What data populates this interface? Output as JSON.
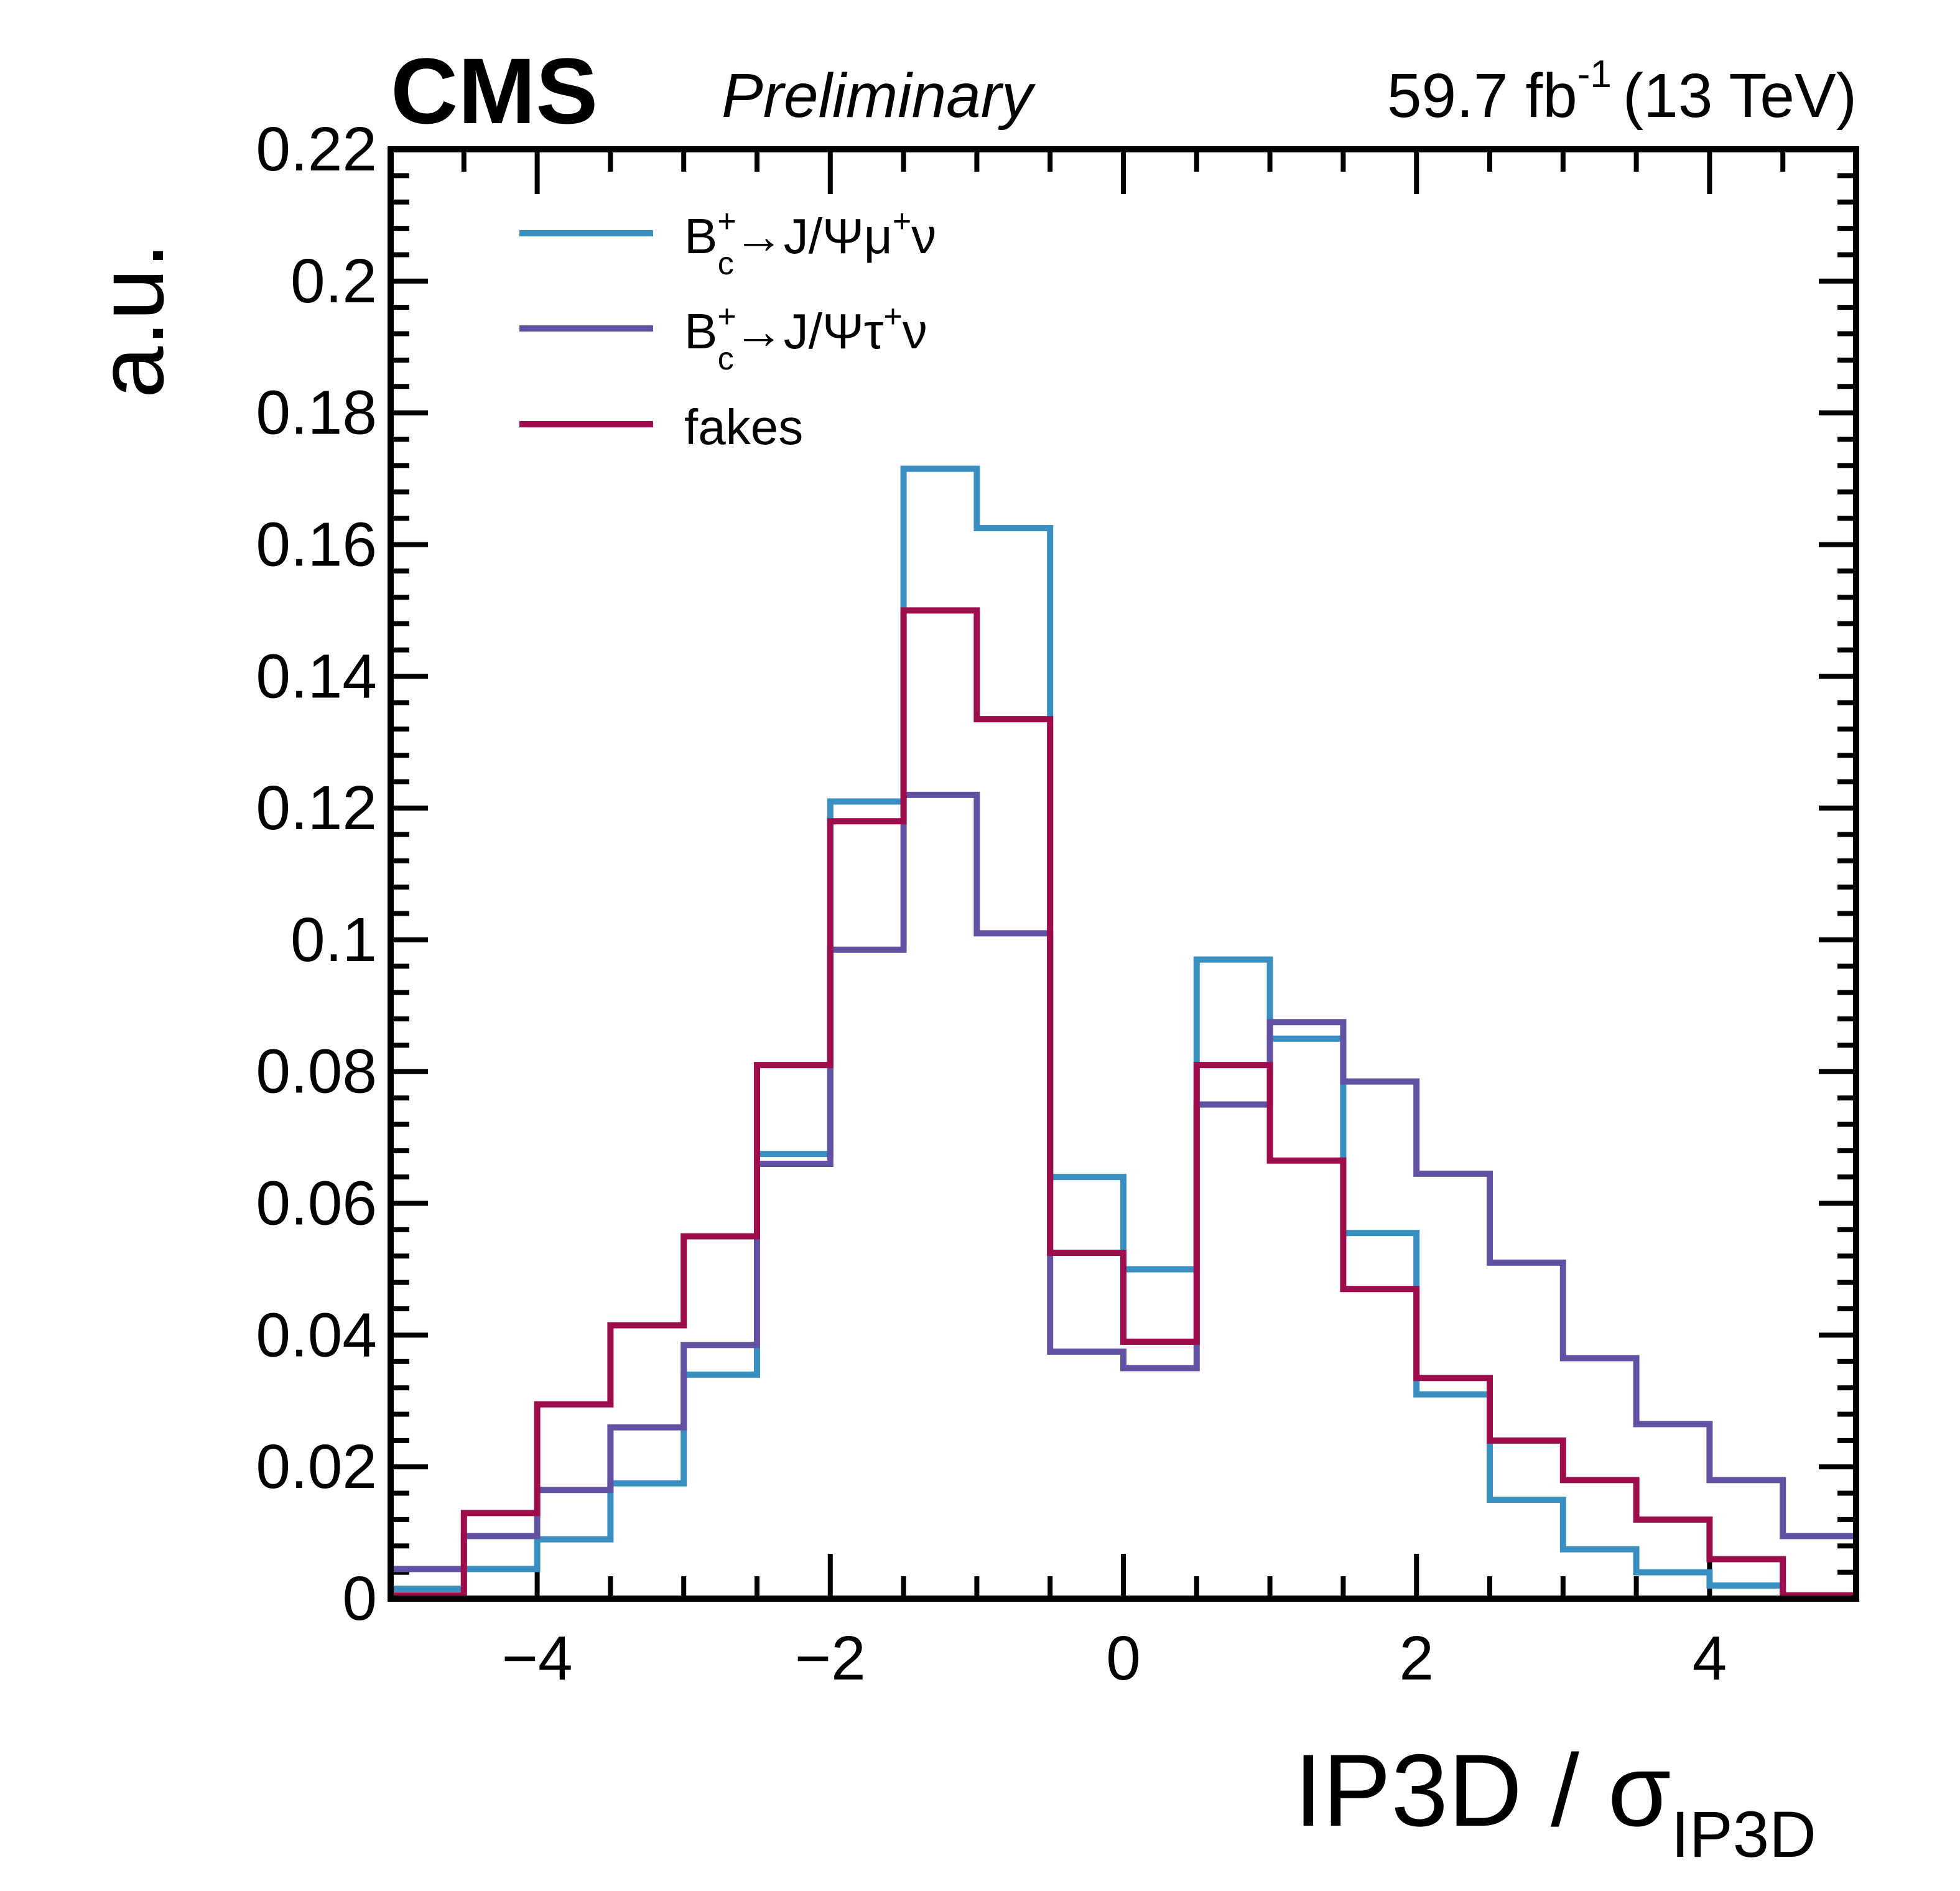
{
  "header": {
    "experiment": "CMS",
    "status": "Preliminary",
    "lumi_value": "59.7 fb",
    "lumi_exp": "-1",
    "energy": "(13 TeV)"
  },
  "chart_data": {
    "type": "histogram",
    "ylabel": "a.u.",
    "xlabel": {
      "main": "IP3D / σ",
      "sub": "IP3D"
    },
    "xlim": [
      -5,
      5
    ],
    "ylim": [
      0,
      0.22
    ],
    "xticks": [
      {
        "value": -4,
        "label": "−4"
      },
      {
        "value": -2,
        "label": "−2"
      },
      {
        "value": 0,
        "label": "0"
      },
      {
        "value": 2,
        "label": "2"
      },
      {
        "value": 4,
        "label": "4"
      }
    ],
    "yticks": [
      {
        "value": 0,
        "label": "0"
      },
      {
        "value": 0.02,
        "label": "0.02"
      },
      {
        "value": 0.04,
        "label": "0.04"
      },
      {
        "value": 0.06,
        "label": "0.06"
      },
      {
        "value": 0.08,
        "label": "0.08"
      },
      {
        "value": 0.1,
        "label": "0.1"
      },
      {
        "value": 0.12,
        "label": "0.12"
      },
      {
        "value": 0.14,
        "label": "0.14"
      },
      {
        "value": 0.16,
        "label": "0.16"
      },
      {
        "value": 0.18,
        "label": "0.18"
      },
      {
        "value": 0.2,
        "label": "0.2"
      },
      {
        "value": 0.22,
        "label": "0.22"
      }
    ],
    "bin_edges": [
      -5,
      -4.5,
      -4,
      -3.5,
      -3,
      -2.5,
      -2,
      -1.5,
      -1,
      -0.5,
      0,
      0.5,
      1,
      1.5,
      2,
      2.5,
      3,
      3.5,
      4,
      4.5,
      5
    ],
    "legend_position": "top-left",
    "grid": false,
    "series": [
      {
        "name": "mu",
        "legend": {
          "base": "B",
          "sup": "+",
          "sub": "c",
          "mid": "→J/Ψμ",
          "sup2": "+",
          "end": "ν"
        },
        "color": "#3a8fc1",
        "values": [
          0.0015,
          0.0045,
          0.009,
          0.0175,
          0.034,
          0.0675,
          0.121,
          0.1715,
          0.1625,
          0.064,
          0.05,
          0.097,
          0.085,
          0.0555,
          0.031,
          0.015,
          0.0075,
          0.004,
          0.002,
          0.0005
        ]
      },
      {
        "name": "tau",
        "legend": {
          "base": "B",
          "sup": "+",
          "sub": "c",
          "mid": "→J/Ψτ",
          "sup2": "+",
          "end": "ν"
        },
        "color": "#6351a3",
        "values": [
          0.0045,
          0.0095,
          0.0165,
          0.026,
          0.0385,
          0.066,
          0.0985,
          0.122,
          0.101,
          0.0375,
          0.035,
          0.075,
          0.0875,
          0.0785,
          0.0645,
          0.051,
          0.0365,
          0.0265,
          0.018,
          0.0095
        ]
      },
      {
        "name": "fakes",
        "legend": {
          "text": "fakes"
        },
        "color": "#9e0d4b",
        "values": [
          0.0005,
          0.013,
          0.0295,
          0.0415,
          0.055,
          0.081,
          0.118,
          0.15,
          0.1335,
          0.0525,
          0.039,
          0.081,
          0.0665,
          0.047,
          0.0335,
          0.024,
          0.018,
          0.012,
          0.006,
          0.0005
        ]
      }
    ]
  }
}
